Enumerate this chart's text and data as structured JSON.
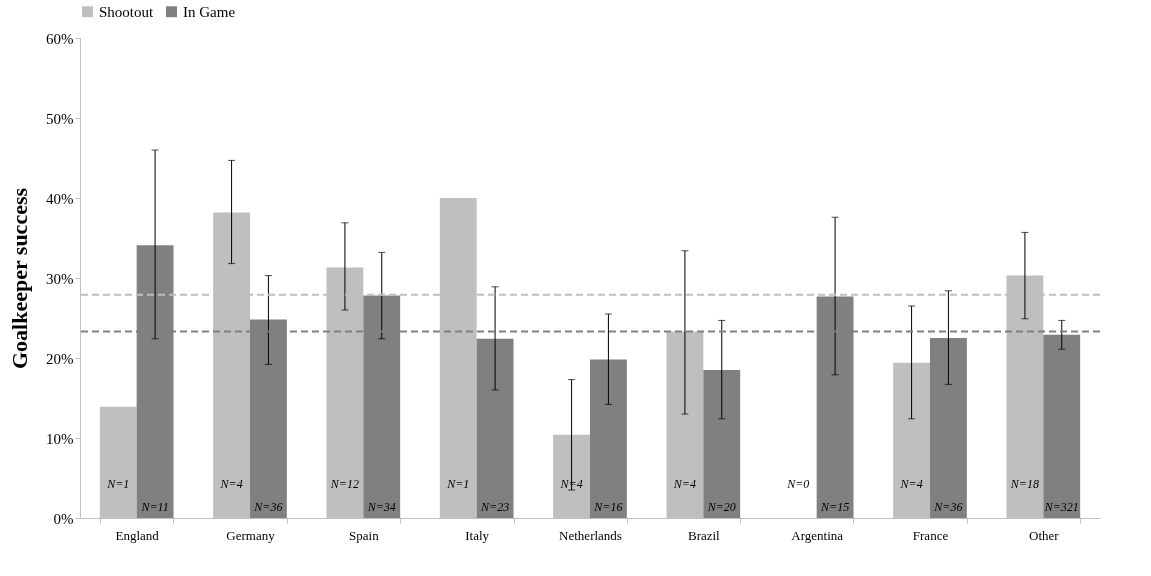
{
  "chart_data": {
    "type": "bar",
    "ylabel": "Goalkeeper success",
    "categories": [
      "England",
      "Germany",
      "Spain",
      "Italy",
      "Netherlands",
      "Brazil",
      "Argentina",
      "France",
      "Other"
    ],
    "series": [
      {
        "name": "Shootout",
        "color": "#bfbfbf",
        "values": [
          13.9,
          38.2,
          31.3,
          40.0,
          10.4,
          23.3,
          null,
          19.4,
          30.3
        ],
        "errors": [
          null,
          [
            31.8,
            44.7
          ],
          [
            26.0,
            36.9
          ],
          null,
          [
            3.5,
            17.3
          ],
          [
            13.0,
            33.4
          ],
          null,
          [
            12.4,
            26.5
          ],
          [
            24.9,
            35.7
          ]
        ]
      },
      {
        "name": "In Game",
        "color": "#808080",
        "values": [
          34.1,
          24.8,
          27.8,
          22.4,
          19.8,
          18.5,
          27.7,
          22.5,
          22.9
        ],
        "errors": [
          [
            22.4,
            46.0
          ],
          [
            19.2,
            30.3
          ],
          [
            22.4,
            33.2
          ],
          [
            16.0,
            28.9
          ],
          [
            14.2,
            25.5
          ],
          [
            12.4,
            24.7
          ],
          [
            17.9,
            37.6
          ],
          [
            16.7,
            28.4
          ],
          [
            21.1,
            24.7
          ]
        ]
      }
    ],
    "annotations": [
      {
        "text": "N=1",
        "x": "England",
        "y": 4.2
      },
      {
        "text": "N=11",
        "x": "England",
        "y": 1.4
      },
      {
        "text": "N=4",
        "x": "Germany",
        "y": 4.2
      },
      {
        "text": "N=36",
        "x": "Germany",
        "y": 1.4
      },
      {
        "text": "N=12",
        "x": "Spain",
        "y": 4.2
      },
      {
        "text": "N=34",
        "x": "Spain",
        "y": 1.4
      },
      {
        "text": "N=1",
        "x": "Italy",
        "y": 4.2
      },
      {
        "text": "N=23",
        "x": "Italy",
        "y": 1.4
      },
      {
        "text": "N=4",
        "x": "Netherlands",
        "y": 4.2
      },
      {
        "text": "N=16",
        "x": "Netherlands",
        "y": 1.4
      },
      {
        "text": "N=4",
        "x": "Brazil",
        "y": 4.2
      },
      {
        "text": "N=20",
        "x": "Brazil",
        "y": 1.4
      },
      {
        "text": "N=0",
        "x": "Argentina",
        "y": 4.2
      },
      {
        "text": "N=15",
        "x": "Argentina",
        "y": 1.4
      },
      {
        "text": "N=4",
        "x": "France",
        "y": 4.2
      },
      {
        "text": "N=36",
        "x": "France",
        "y": 1.4
      },
      {
        "text": "N=18",
        "x": "Other",
        "y": 4.2
      },
      {
        "text": "N=321",
        "x": "Other",
        "y": 1.4
      }
    ],
    "ylim": [
      0,
      60
    ],
    "yticks": [
      {
        "value": 0,
        "label": "0%"
      },
      {
        "value": 10,
        "label": "10%"
      },
      {
        "value": 20,
        "label": "20%"
      },
      {
        "value": 30,
        "label": "30%"
      },
      {
        "value": 40,
        "label": "40%"
      },
      {
        "value": 50,
        "label": "50%"
      },
      {
        "value": 60,
        "label": "60%"
      }
    ],
    "ref_lines": [
      {
        "axis": "y",
        "value": 27.9,
        "color": "#bfbfbf",
        "line_style": "dashed"
      },
      {
        "axis": "y",
        "value": 23.3,
        "color": "#808080",
        "line_style": "dashed"
      }
    ],
    "legend": "top",
    "grid": false
  }
}
